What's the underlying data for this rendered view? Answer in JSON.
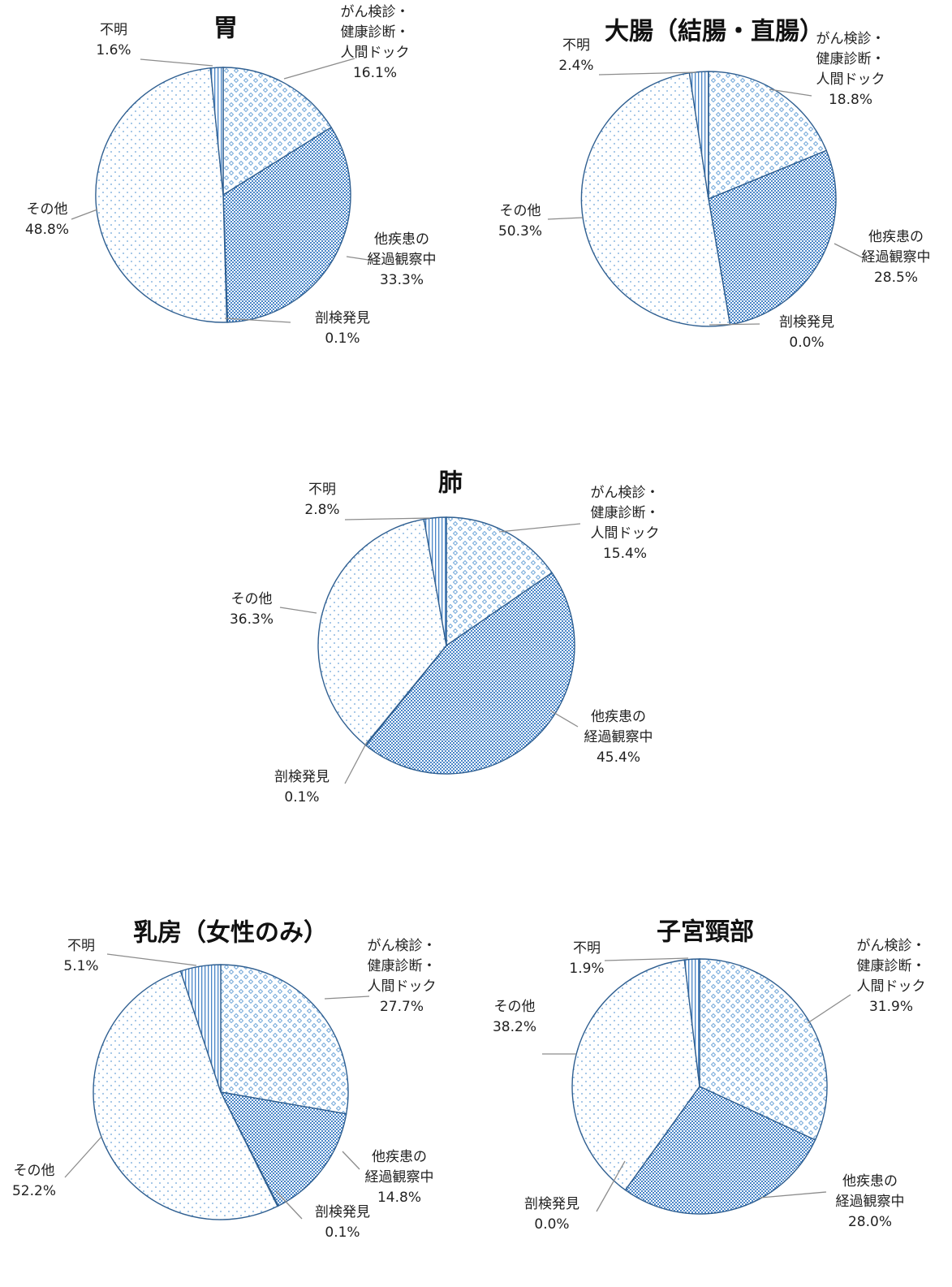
{
  "chart_data": [
    {
      "type": "pie",
      "title": "胃",
      "slices": [
        {
          "name": "がん検診・健康診断・人間ドック",
          "lines": [
            "がん検診・",
            "健康診断・",
            "人間ドック"
          ],
          "pct_label": "16.1%",
          "value": 16.1,
          "pattern": "diamond"
        },
        {
          "name": "他疾患の経過観察中",
          "lines": [
            "他疾患の",
            "経過観察中"
          ],
          "pct_label": "33.3%",
          "value": 33.3,
          "pattern": "check"
        },
        {
          "name": "剖検発見",
          "lines": [
            "剖検発見"
          ],
          "pct_label": "0.1%",
          "value": 0.1,
          "pattern": "check"
        },
        {
          "name": "その他",
          "lines": [
            "その他"
          ],
          "pct_label": "48.8%",
          "value": 48.8,
          "pattern": "dots"
        },
        {
          "name": "不明",
          "lines": [
            "不明"
          ],
          "pct_label": "1.6%",
          "value": 1.6,
          "pattern": "vlines"
        }
      ]
    },
    {
      "type": "pie",
      "title": "大腸（結腸・直腸）",
      "slices": [
        {
          "name": "がん検診・健康診断・人間ドック",
          "lines": [
            "がん検診・",
            "健康診断・",
            "人間ドック"
          ],
          "pct_label": "18.8%",
          "value": 18.8,
          "pattern": "diamond"
        },
        {
          "name": "他疾患の経過観察中",
          "lines": [
            "他疾患の",
            "経過観察中"
          ],
          "pct_label": "28.5%",
          "value": 28.5,
          "pattern": "check"
        },
        {
          "name": "剖検発見",
          "lines": [
            "剖検発見"
          ],
          "pct_label": "0.0%",
          "value": 0.0,
          "pattern": "check"
        },
        {
          "name": "その他",
          "lines": [
            "その他"
          ],
          "pct_label": "50.3%",
          "value": 50.3,
          "pattern": "dots"
        },
        {
          "name": "不明",
          "lines": [
            "不明"
          ],
          "pct_label": "2.4%",
          "value": 2.4,
          "pattern": "vlines"
        }
      ]
    },
    {
      "type": "pie",
      "title": "肺",
      "slices": [
        {
          "name": "がん検診・健康診断・人間ドック",
          "lines": [
            "がん検診・",
            "健康診断・",
            "人間ドック"
          ],
          "pct_label": "15.4%",
          "value": 15.4,
          "pattern": "diamond"
        },
        {
          "name": "他疾患の経過観察中",
          "lines": [
            "他疾患の",
            "経過観察中"
          ],
          "pct_label": "45.4%",
          "value": 45.4,
          "pattern": "check"
        },
        {
          "name": "剖検発見",
          "lines": [
            "剖検発見"
          ],
          "pct_label": "0.1%",
          "value": 0.1,
          "pattern": "check"
        },
        {
          "name": "その他",
          "lines": [
            "その他"
          ],
          "pct_label": "36.3%",
          "value": 36.3,
          "pattern": "dots"
        },
        {
          "name": "不明",
          "lines": [
            "不明"
          ],
          "pct_label": "2.8%",
          "value": 2.8,
          "pattern": "vlines"
        }
      ]
    },
    {
      "type": "pie",
      "title": "乳房（女性のみ）",
      "slices": [
        {
          "name": "がん検診・健康診断・人間ドック",
          "lines": [
            "がん検診・",
            "健康診断・",
            "人間ドック"
          ],
          "pct_label": "27.7%",
          "value": 27.7,
          "pattern": "diamond"
        },
        {
          "name": "他疾患の経過観察中",
          "lines": [
            "他疾患の",
            "経過観察中"
          ],
          "pct_label": "14.8%",
          "value": 14.8,
          "pattern": "check"
        },
        {
          "name": "剖検発見",
          "lines": [
            "剖検発見"
          ],
          "pct_label": "0.1%",
          "value": 0.1,
          "pattern": "check"
        },
        {
          "name": "その他",
          "lines": [
            "その他"
          ],
          "pct_label": "52.2%",
          "value": 52.2,
          "pattern": "dots"
        },
        {
          "name": "不明",
          "lines": [
            "不明"
          ],
          "pct_label": "5.1%",
          "value": 5.1,
          "pattern": "vlines"
        }
      ]
    },
    {
      "type": "pie",
      "title": "子宮頸部",
      "slices": [
        {
          "name": "がん検診・健康診断・人間ドック",
          "lines": [
            "がん検診・",
            "健康診断・",
            "人間ドック"
          ],
          "pct_label": "31.9%",
          "value": 31.9,
          "pattern": "diamond"
        },
        {
          "name": "他疾患の経過観察中",
          "lines": [
            "他疾患の",
            "経過観察中"
          ],
          "pct_label": "28.0%",
          "value": 28.0,
          "pattern": "check"
        },
        {
          "name": "剖検発見",
          "lines": [
            "剖検発見"
          ],
          "pct_label": "0.0%",
          "value": 0.0,
          "pattern": "check"
        },
        {
          "name": "その他",
          "lines": [
            "その他"
          ],
          "pct_label": "38.2%",
          "value": 38.2,
          "pattern": "dots"
        },
        {
          "name": "不明",
          "lines": [
            "不明"
          ],
          "pct_label": "1.9%",
          "value": 1.9,
          "pattern": "vlines"
        }
      ]
    }
  ],
  "colors": {
    "outline": "#2f5f91",
    "pattern_light": "#5b9bd5",
    "pattern_dark": "#3f7fc4",
    "leader": "#8c8c8c",
    "text": "#222222"
  }
}
